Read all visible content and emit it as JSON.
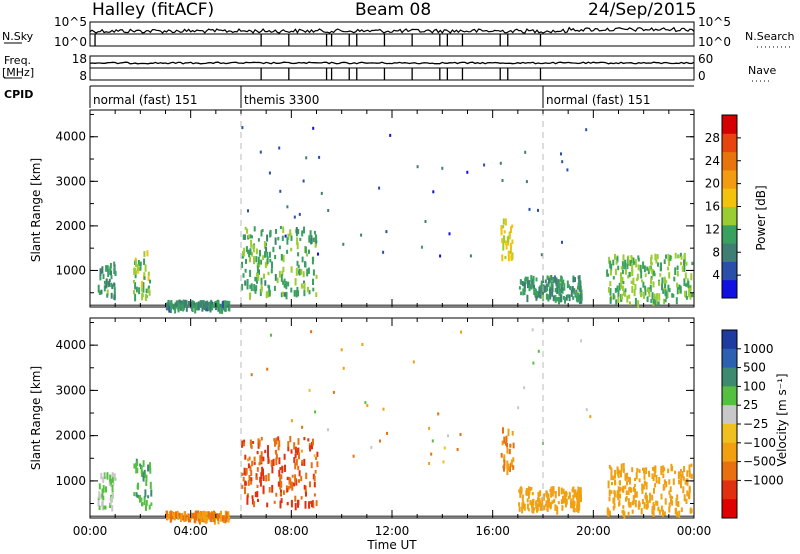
{
  "header": {
    "station": "Halley (fitACF)",
    "beam": "Beam 08",
    "date": "24/Sep/2015"
  },
  "summary_panel": {
    "nsky_label": "N.Sky",
    "nsky_ticks": [
      "10^5",
      "10^0"
    ],
    "nsearch_label": "N.Search",
    "nsearch_ticks": [
      "10^5",
      "10^0"
    ],
    "freq_label": "Freq.",
    "freq_unit": "[MHz]",
    "freq_ticks": [
      "18",
      "8"
    ],
    "nave_label": "Nave",
    "nave_ticks": [
      "60",
      "0"
    ],
    "cpid_label": "CPID",
    "cpid_segments": [
      {
        "label": "normal (fast) 151",
        "start_hour": 0
      },
      {
        "label": "themis 3300",
        "start_hour": 6
      },
      {
        "label": "normal (fast) 151",
        "start_hour": 18
      }
    ]
  },
  "colors": {
    "power_scale": [
      "#1010e0",
      "#2a4fa8",
      "#3f7f73",
      "#3aa060",
      "#9acd32",
      "#f4c20d",
      "#f39c12",
      "#e8740c",
      "#e64510",
      "#d50000"
    ],
    "velocity_scale": [
      "#1e3ca0",
      "#2c60b0",
      "#3d8a70",
      "#55c040",
      "#c8c8c8",
      "#f0c020",
      "#f0a010",
      "#e87010",
      "#e03010",
      "#e00000"
    ]
  },
  "chart_data": [
    {
      "type": "heatmap",
      "panel": "power",
      "ylabel": "Slant Range [km]",
      "yticks": [
        1000,
        2000,
        3000,
        4000
      ],
      "ylim": [
        180,
        4600
      ],
      "xlim_hours": [
        0,
        24
      ],
      "colorbar_label": "Power [dB]",
      "colorbar_ticks": [
        4,
        8,
        12,
        16,
        20,
        24,
        28
      ],
      "colorbar_range": [
        0,
        32
      ],
      "dashed_lines_hours": [
        6,
        18
      ],
      "clusters": [
        {
          "t0": 0.3,
          "t1": 1.0,
          "r0": 450,
          "r1": 1200,
          "power": 10
        },
        {
          "t0": 1.7,
          "t1": 2.4,
          "r0": 450,
          "r1": 1500,
          "power": 14
        },
        {
          "t0": 3.0,
          "t1": 5.5,
          "r0": 200,
          "r1": 350,
          "power": 9
        },
        {
          "t0": 6.0,
          "t1": 9.0,
          "r0": 500,
          "r1": 2000,
          "power": 12
        },
        {
          "t0": 16.3,
          "t1": 16.8,
          "r0": 1300,
          "r1": 2200,
          "power": 16
        },
        {
          "t0": 17.0,
          "t1": 19.5,
          "r0": 400,
          "r1": 900,
          "power": 10
        },
        {
          "t0": 20.5,
          "t1": 23.9,
          "r0": 300,
          "r1": 1400,
          "power": 13
        }
      ]
    },
    {
      "type": "heatmap",
      "panel": "velocity",
      "xlabel": "Time UT",
      "ylabel": "Slant Range [km]",
      "yticks": [
        1000,
        2000,
        3000,
        4000
      ],
      "ylim": [
        180,
        4600
      ],
      "xlim_hours": [
        0,
        24
      ],
      "xticks": [
        "00:00",
        "04:00",
        "08:00",
        "12:00",
        "16:00",
        "20:00",
        "00:00"
      ],
      "colorbar_label": "Velocity [m s⁻¹]",
      "colorbar_ticks": [
        "1000",
        "500",
        "100",
        "25",
        "−25",
        "−100",
        "−500",
        "−1000"
      ],
      "dashed_lines_hours": [
        6,
        18
      ],
      "clusters": [
        {
          "t0": 0.3,
          "t1": 1.0,
          "r0": 450,
          "r1": 1200,
          "velocity": 100
        },
        {
          "t0": 1.7,
          "t1": 2.4,
          "r0": 450,
          "r1": 1500,
          "velocity": 500
        },
        {
          "t0": 3.0,
          "t1": 5.5,
          "r0": 200,
          "r1": 350,
          "velocity": -100
        },
        {
          "t0": 6.0,
          "t1": 9.0,
          "r0": 500,
          "r1": 2000,
          "velocity": -500
        },
        {
          "t0": 16.3,
          "t1": 16.8,
          "r0": 1300,
          "r1": 2200,
          "velocity": -100
        },
        {
          "t0": 17.0,
          "t1": 19.5,
          "r0": 400,
          "r1": 900,
          "velocity": -50
        },
        {
          "t0": 20.5,
          "t1": 23.9,
          "r0": 300,
          "r1": 1400,
          "velocity": -50
        }
      ]
    }
  ]
}
